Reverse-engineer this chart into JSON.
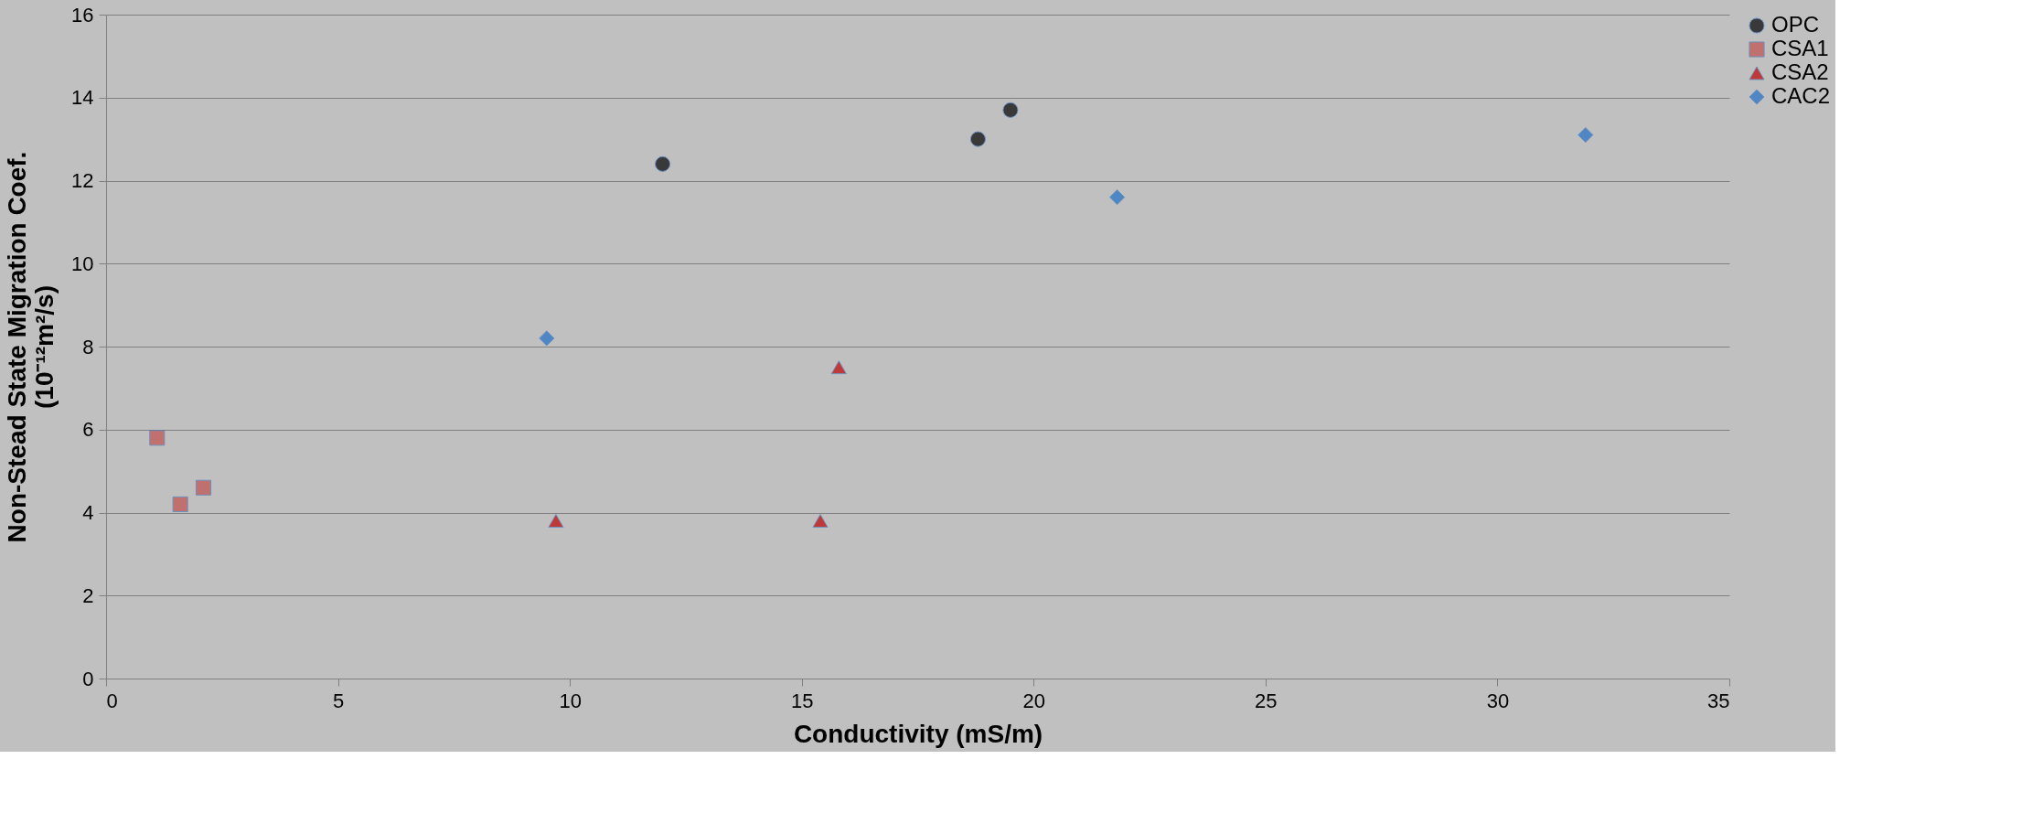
{
  "chart_data": {
    "type": "scatter",
    "xlabel": "Conductivity (mS/m)",
    "ylabel": [
      "Non-Stead State Migration Coef.",
      "(10⁻¹²m²/s)"
    ],
    "xlim": [
      0,
      35
    ],
    "xticks": [
      0,
      5,
      10,
      15,
      20,
      25,
      30,
      35
    ],
    "ylim": [
      0,
      16
    ],
    "yticks": [
      0,
      2,
      4,
      6,
      8,
      10,
      12,
      14,
      16
    ],
    "grid": "y",
    "legend": "right",
    "series": [
      {
        "name": "OPC",
        "color": "#000000",
        "marker": "circle",
        "x": [
          12.0,
          18.8,
          19.5
        ],
        "values": [
          12.4,
          13.0,
          13.7
        ]
      },
      {
        "name": "CSA1",
        "color": "#c0504d",
        "marker": "square",
        "x": [
          1.1,
          1.6,
          2.1
        ],
        "values": [
          5.8,
          4.2,
          4.6
        ]
      },
      {
        "name": "CSA2",
        "color": "#c00000",
        "marker": "triangle",
        "x": [
          9.7,
          15.4,
          15.8
        ],
        "values": [
          3.8,
          3.8,
          7.5
        ]
      },
      {
        "name": "CAC2",
        "color": "#1f6fc7",
        "marker": "diamond",
        "x": [
          9.5,
          21.8,
          31.9
        ],
        "values": [
          8.2,
          11.6,
          13.1
        ]
      }
    ]
  }
}
